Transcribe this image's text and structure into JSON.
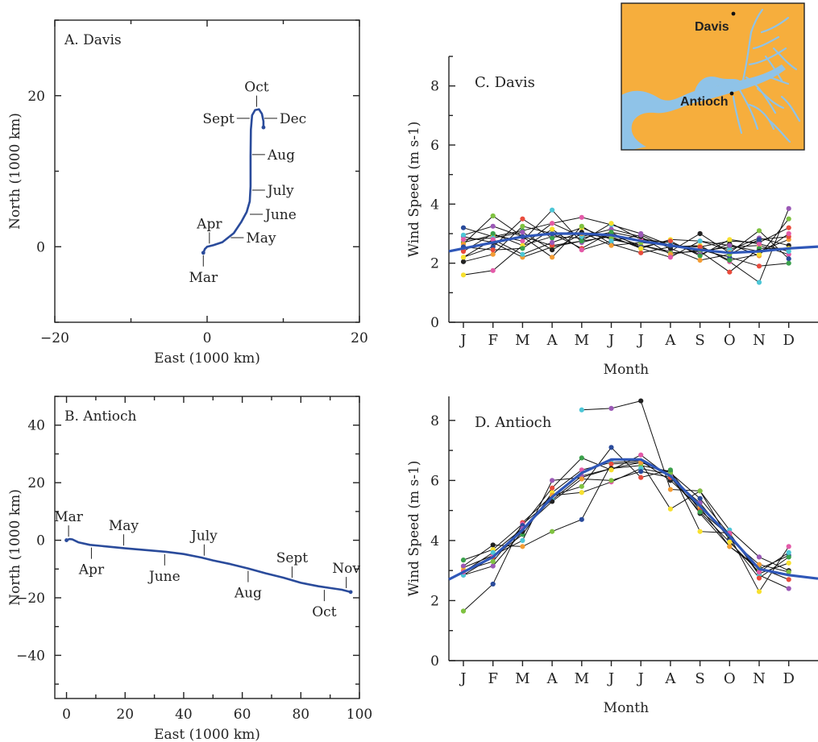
{
  "colors": {
    "track": "#2a4b9b",
    "mean_line": "#2f57b8",
    "annual_line": "#111111",
    "map_land": "#f6ae3d",
    "map_water": "#8fc3e8",
    "axis": "#222222",
    "station_palette": [
      "#2a4b9b",
      "#e94b3c",
      "#3aa04b",
      "#f7e02f",
      "#e35aa8",
      "#4cc6d6",
      "#9b59b6",
      "#222222",
      "#f39c34",
      "#7fc241"
    ]
  },
  "map": {
    "labels": [
      "Davis",
      "Antioch"
    ]
  },
  "chart_data": [
    {
      "id": "A",
      "type": "line",
      "title": "A. Davis",
      "xlabel": "East (1000 km)",
      "ylabel": "North (1000 km)",
      "xlim": [
        -20,
        20
      ],
      "ylim": [
        -10,
        30
      ],
      "xticks": [
        -20,
        0,
        20
      ],
      "yticks": [
        0,
        20
      ],
      "grid": false,
      "path": [
        [
          -0.5,
          -0.8
        ],
        [
          -0.3,
          -0.3
        ],
        [
          0,
          0
        ],
        [
          0.8,
          0.2
        ],
        [
          2,
          0.6
        ],
        [
          3.5,
          1.8
        ],
        [
          4.5,
          3.3
        ],
        [
          5.2,
          4.6
        ],
        [
          5.6,
          6
        ],
        [
          5.7,
          8
        ],
        [
          5.7,
          12
        ],
        [
          5.75,
          15.5
        ],
        [
          5.9,
          17.4
        ],
        [
          6.3,
          18.1
        ],
        [
          6.8,
          18.2
        ],
        [
          7.2,
          17.6
        ],
        [
          7.4,
          16.6
        ],
        [
          7.4,
          15.8
        ]
      ],
      "annotations": [
        {
          "text": "Mar",
          "at": [
            -0.5,
            -0.8
          ],
          "side": "below"
        },
        {
          "text": "Apr",
          "at": [
            0.3,
            0.1
          ],
          "side": "above"
        },
        {
          "text": "May",
          "at": [
            2.9,
            1.2
          ],
          "side": "right"
        },
        {
          "text": "June",
          "at": [
            5.4,
            4.3
          ],
          "side": "right"
        },
        {
          "text": "July",
          "at": [
            5.7,
            7.5
          ],
          "side": "right"
        },
        {
          "text": "Aug",
          "at": [
            5.7,
            12.2
          ],
          "side": "right"
        },
        {
          "text": "Sept",
          "at": [
            5.8,
            17
          ],
          "side": "left"
        },
        {
          "text": "Oct",
          "at": [
            6.5,
            18.2
          ],
          "side": "above"
        },
        {
          "text": "Dec",
          "at": [
            7.3,
            17
          ],
          "side": "right"
        }
      ]
    },
    {
      "id": "B",
      "type": "line",
      "title": "B. Antioch",
      "xlabel": "East (1000 km)",
      "ylabel": "North (1000 km)",
      "xlim": [
        -4,
        100
      ],
      "ylim": [
        -55,
        50
      ],
      "xticks": [
        0,
        20,
        40,
        60,
        80,
        100
      ],
      "yticks": [
        -40,
        -20,
        0,
        20,
        40
      ],
      "grid": false,
      "path": [
        [
          0,
          0
        ],
        [
          1,
          0.4
        ],
        [
          2,
          0.3
        ],
        [
          4,
          -0.7
        ],
        [
          8,
          -1.6
        ],
        [
          14,
          -2.2
        ],
        [
          20,
          -2.8
        ],
        [
          28,
          -3.5
        ],
        [
          34,
          -4
        ],
        [
          40,
          -4.8
        ],
        [
          46,
          -6
        ],
        [
          50,
          -7
        ],
        [
          56,
          -8.3
        ],
        [
          62,
          -9.8
        ],
        [
          68,
          -11.5
        ],
        [
          74,
          -13
        ],
        [
          80,
          -14.8
        ],
        [
          86,
          -16
        ],
        [
          90,
          -16.6
        ],
        [
          94,
          -17.2
        ],
        [
          97,
          -18
        ]
      ],
      "annotations": [
        {
          "text": "Mar",
          "at": [
            0.7,
            0.4
          ],
          "side": "above"
        },
        {
          "text": "Apr",
          "at": [
            8.5,
            -1.7
          ],
          "side": "below"
        },
        {
          "text": "May",
          "at": [
            19.5,
            -2.7
          ],
          "side": "above"
        },
        {
          "text": "June",
          "at": [
            33.5,
            -4
          ],
          "side": "below"
        },
        {
          "text": "July",
          "at": [
            47,
            -6.2
          ],
          "side": "above"
        },
        {
          "text": "Aug",
          "at": [
            62,
            -9.8
          ],
          "side": "below"
        },
        {
          "text": "Sept",
          "at": [
            77,
            -13.9
          ],
          "side": "above"
        },
        {
          "text": "Oct",
          "at": [
            88,
            -16.4
          ],
          "side": "below"
        },
        {
          "text": "Nov",
          "at": [
            95.5,
            -17.5
          ],
          "side": "above"
        }
      ]
    },
    {
      "id": "C",
      "type": "line",
      "title": "C. Davis",
      "xlabel": "Month",
      "ylabel": "Wind Speed (m s-1)",
      "categories": [
        "J",
        "F",
        "M",
        "A",
        "M",
        "J",
        "J",
        "A",
        "S",
        "O",
        "N",
        "D"
      ],
      "ylim": [
        0,
        9
      ],
      "yticks": [
        0,
        2,
        4,
        6,
        8
      ],
      "grid": false,
      "mean_line": [
        2.5,
        2.7,
        2.9,
        3.0,
        3.0,
        2.95,
        2.75,
        2.6,
        2.45,
        2.35,
        2.4,
        2.5
      ],
      "series": [
        {
          "values": [
            3.2,
            2.9,
            3.1,
            3.35,
            3.55,
            3.3,
            3.0,
            2.6,
            2.55,
            2.75,
            2.7,
            3.2
          ]
        },
        {
          "values": [
            1.6,
            1.75,
            2.6,
            2.9,
            2.85,
            3.05,
            2.85,
            2.6,
            2.4,
            2.55,
            2.6,
            2.3
          ]
        },
        {
          "values": [
            2.9,
            2.7,
            2.2,
            2.55,
            2.75,
            2.9,
            2.5,
            2.8,
            2.75,
            2.45,
            2.85,
            2.6
          ]
        },
        {
          "values": [
            2.2,
            2.55,
            3.5,
            2.85,
            3.2,
            2.8,
            2.6,
            2.4,
            3.0,
            2.35,
            3.1,
            2.15
          ]
        },
        {
          "values": [
            2.7,
            2.95,
            2.75,
            3.8,
            2.7,
            2.95,
            2.6,
            2.35,
            2.4,
            1.7,
            2.5,
            2.5
          ]
        },
        {
          "values": [
            2.95,
            3.25,
            2.9,
            2.2,
            3.25,
            2.65,
            2.35,
            2.55,
            2.6,
            2.05,
            1.35,
            3.85
          ]
        },
        {
          "values": [
            2.65,
            3.6,
            2.9,
            2.6,
            2.75,
            3.35,
            2.8,
            2.7,
            2.3,
            2.65,
            2.25,
            3.5
          ]
        },
        {
          "values": [
            2.4,
            3.0,
            2.6,
            3.35,
            2.9,
            3.15,
            2.9,
            2.3,
            2.45,
            2.2,
            1.9,
            2.0
          ]
        },
        {
          "values": [
            2.8,
            2.85,
            3.05,
            2.45,
            3.0,
            2.85,
            2.55,
            2.75,
            2.25,
            2.8,
            2.65,
            2.4
          ]
        },
        {
          "values": [
            2.05,
            2.3,
            3.25,
            3.0,
            2.5,
            3.05,
            2.5,
            2.2,
            2.75,
            2.6,
            2.4,
            2.8
          ]
        },
        {
          "values": [
            2.55,
            2.45,
            2.5,
            3.15,
            2.45,
            2.75,
            2.95,
            2.5,
            2.1,
            2.3,
            2.8,
            2.9
          ]
        },
        {
          "values": [
            2.2,
            2.8,
            2.3,
            2.7,
            3.05,
            2.6,
            2.7,
            2.6,
            2.55,
            2.1,
            2.3,
            3.0
          ]
        }
      ]
    },
    {
      "id": "D",
      "type": "line",
      "title": "D. Antioch",
      "xlabel": "Month",
      "ylabel": "Wind Speed (m s-1)",
      "categories": [
        "J",
        "F",
        "M",
        "A",
        "M",
        "J",
        "J",
        "A",
        "S",
        "O",
        "N",
        "D"
      ],
      "ylim": [
        0,
        8.8
      ],
      "yticks": [
        0,
        2,
        4,
        6,
        8
      ],
      "grid": false,
      "mean_line": [
        2.95,
        3.45,
        4.35,
        5.45,
        6.25,
        6.7,
        6.7,
        6.15,
        5.15,
        4.15,
        3.05,
        2.85
      ],
      "series": [
        {
          "values": [
            2.85,
            3.45,
            4.2,
            5.6,
            6.35,
            6.6,
            6.65,
            6.0,
            5.1,
            3.8,
            3.1,
            2.7
          ]
        },
        {
          "values": [
            3.1,
            3.5,
            4.0,
            6.0,
            6.1,
            6.4,
            6.5,
            6.3,
            5.0,
            4.15,
            2.3,
            3.8
          ]
        },
        {
          "values": [
            3.15,
            3.85,
            3.8,
            4.3,
            4.7,
            6.55,
            6.6,
            5.05,
            5.65,
            4.35,
            3.45,
            3.0
          ]
        },
        {
          "values": [
            1.65,
            2.55,
            4.6,
            5.5,
            5.6,
            5.95,
            6.4,
            6.2,
            4.9,
            3.8,
            3.05,
            3.5
          ]
        },
        {
          "values": [
            3.35,
            3.7,
            4.55,
            5.35,
            6.15,
            6.4,
            6.6,
            6.25,
            5.4,
            4.2,
            2.9,
            3.25
          ]
        },
        {
          "values": [
            2.85,
            3.15,
            4.3,
            5.5,
            5.8,
            7.1,
            6.1,
            6.35,
            4.3,
            4.25,
            2.85,
            2.4
          ]
        },
        {
          "values": [
            3.0,
            3.3,
            4.5,
            5.75,
            6.75,
            6.35,
            6.85,
            6.1,
            5.25,
            4.05,
            3.2,
            2.95
          ]
        },
        {
          "values": [
            null,
            null,
            null,
            null,
            8.35,
            8.4,
            8.65,
            5.7,
            5.65,
            4.0,
            2.75,
            3.45
          ]
        },
        {
          "values": [
            2.95,
            3.6,
            4.4,
            5.3,
            6.05,
            6.0,
            6.3,
            6.1,
            4.95,
            3.95,
            2.95,
            3.6
          ]
        }
      ]
    }
  ]
}
